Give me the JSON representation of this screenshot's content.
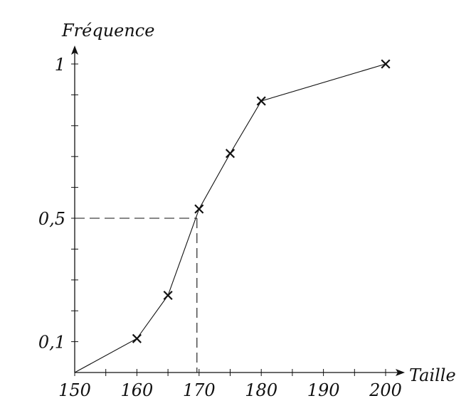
{
  "chart_data": {
    "type": "line",
    "xlabel": "Taille",
    "ylabel": "Fréquence",
    "xlim": [
      150,
      200
    ],
    "ylim": [
      0,
      1
    ],
    "x_ticks": [
      150,
      155,
      160,
      165,
      170,
      175,
      180,
      185,
      190,
      195,
      200
    ],
    "x_tick_labels": [
      {
        "value": 150,
        "label": "150"
      },
      {
        "value": 160,
        "label": "160"
      },
      {
        "value": 170,
        "label": "170"
      },
      {
        "value": 180,
        "label": "180"
      },
      {
        "value": 190,
        "label": "190"
      },
      {
        "value": 200,
        "label": "200"
      }
    ],
    "y_ticks": [
      0.1,
      0.2,
      0.3,
      0.4,
      0.5,
      0.6,
      0.7,
      0.8,
      0.9,
      1
    ],
    "y_tick_labels": [
      {
        "value": 0.1,
        "label": "0,1"
      },
      {
        "value": 0.5,
        "label": "0,5"
      },
      {
        "value": 1,
        "label": "1"
      }
    ],
    "grid": false,
    "series": [
      {
        "points": [
          {
            "x": 150,
            "y": 0
          },
          {
            "x": 160,
            "y": 0.11
          },
          {
            "x": 165,
            "y": 0.25
          },
          {
            "x": 170,
            "y": 0.53
          },
          {
            "x": 175,
            "y": 0.71
          },
          {
            "x": 180,
            "y": 0.88
          },
          {
            "x": 200,
            "y": 1
          }
        ],
        "markers": [
          {
            "x": 160,
            "y": 0.11
          },
          {
            "x": 165,
            "y": 0.25
          },
          {
            "x": 170,
            "y": 0.53
          },
          {
            "x": 175,
            "y": 0.71
          },
          {
            "x": 180,
            "y": 0.88
          },
          {
            "x": 200,
            "y": 1
          }
        ]
      }
    ],
    "annotations": [
      {
        "kind": "dashed-reading",
        "x": 170,
        "y": 0.5
      }
    ]
  }
}
